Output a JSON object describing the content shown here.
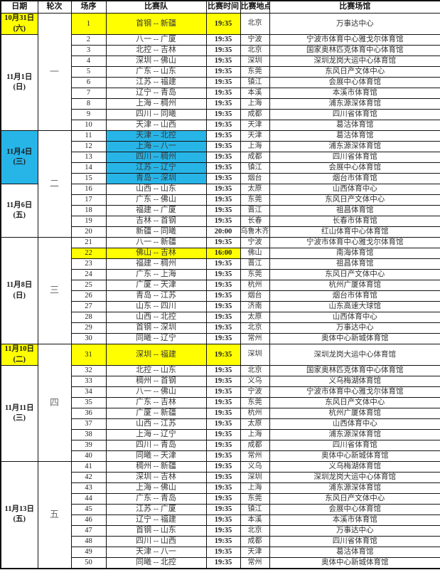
{
  "header": {
    "columns": [
      "日期",
      "轮次",
      "场序",
      "比赛队",
      "比赛时间",
      "比赛地点",
      "比赛场馆"
    ]
  },
  "colors": {
    "highlight_yellow": "#ffff00",
    "highlight_blue": "#27b5e8",
    "border": "#111111"
  },
  "date_groups": [
    {
      "date": "10月31日",
      "week": "(六)",
      "start": 1,
      "end": 1,
      "bg": "yellow"
    },
    {
      "date": "11月1日",
      "week": "(日)",
      "start": 2,
      "end": 10,
      "bg": null
    },
    {
      "date": "11月4日",
      "week": "(三)",
      "start": 11,
      "end": 15,
      "bg": "blue"
    },
    {
      "date": "11月6日",
      "week": "(五)",
      "start": 16,
      "end": 20,
      "bg": null
    },
    {
      "date": "11月8日",
      "week": "(日)",
      "start": 21,
      "end": 30,
      "bg": null
    },
    {
      "date": "11月10日",
      "week": "(二)",
      "start": 31,
      "end": 31,
      "bg": "yellow"
    },
    {
      "date": "11月11日",
      "week": "(三)",
      "start": 32,
      "end": 40,
      "bg": null
    },
    {
      "date": "11月13日",
      "week": "(五)",
      "start": 41,
      "end": 50,
      "bg": null
    }
  ],
  "round_groups": [
    {
      "label": "一",
      "start": 1,
      "end": 10
    },
    {
      "label": "二",
      "start": 11,
      "end": 20
    },
    {
      "label": "三",
      "start": 21,
      "end": 30
    },
    {
      "label": "四",
      "start": 31,
      "end": 40
    },
    {
      "label": "五",
      "start": 41,
      "end": 50
    }
  ],
  "rows": [
    {
      "no": 1,
      "teams": "首钢 -- 新疆",
      "time": "19:35",
      "city": "北京",
      "venue": "万事达中心",
      "hl": "yellow"
    },
    {
      "no": 2,
      "teams": "八一 -- 广厦",
      "time": "19:35",
      "city": "宁波",
      "venue": "宁波市体育中心雅戈尔体育馆",
      "hl": null
    },
    {
      "no": 3,
      "teams": "北控 -- 吉林",
      "time": "19:35",
      "city": "北京",
      "venue": "国家奥林匹克体育中心体育馆",
      "hl": null
    },
    {
      "no": 4,
      "teams": "深圳 -- 佛山",
      "time": "19:35",
      "city": "深圳",
      "venue": "深圳龙岗大运中心体育馆",
      "hl": null
    },
    {
      "no": 5,
      "teams": "广东 -- 山东",
      "time": "19:35",
      "city": "东莞",
      "venue": "东风日产文体中心",
      "hl": null
    },
    {
      "no": 6,
      "teams": "江苏 -- 福建",
      "time": "19:35",
      "city": "镇江",
      "venue": "会展中心体育馆",
      "hl": null
    },
    {
      "no": 7,
      "teams": "辽宁 -- 青岛",
      "time": "19:35",
      "city": "本溪",
      "venue": "本溪市体育馆",
      "hl": null
    },
    {
      "no": 8,
      "teams": "上海 -- 稠州",
      "time": "19:35",
      "city": "上海",
      "venue": "浦东源深体育馆",
      "hl": null
    },
    {
      "no": 9,
      "teams": "四川 -- 同曦",
      "time": "19:35",
      "city": "成都",
      "venue": "四川省体育馆",
      "hl": null
    },
    {
      "no": 10,
      "teams": "天津 -- 山西",
      "time": "19:35",
      "city": "天津",
      "venue": "葛沽体育馆",
      "hl": null
    },
    {
      "no": 11,
      "teams": "天津 -- 北控",
      "time": "19:35",
      "city": "天津",
      "venue": "葛沽体育馆",
      "hl": "blue"
    },
    {
      "no": 12,
      "teams": "上海 -- 八一",
      "time": "19:35",
      "city": "上海",
      "venue": "浦东源深体育馆",
      "hl": "blue"
    },
    {
      "no": 13,
      "teams": "四川 -- 稠州",
      "time": "19:35",
      "city": "成都",
      "venue": "四川省体育馆",
      "hl": "blue"
    },
    {
      "no": 14,
      "teams": "江苏 -- 辽宁",
      "time": "19:35",
      "city": "镇江",
      "venue": "会展中心体育馆",
      "hl": "blue"
    },
    {
      "no": 15,
      "teams": "青岛 -- 深圳",
      "time": "19:35",
      "city": "烟台",
      "venue": "烟台市体育馆",
      "hl": "blue"
    },
    {
      "no": 16,
      "teams": "山西 -- 山东",
      "time": "19:35",
      "city": "太原",
      "venue": "山西体育中心",
      "hl": null
    },
    {
      "no": 17,
      "teams": "广东 -- 佛山",
      "time": "19:35",
      "city": "东莞",
      "venue": "东风日产文体中心",
      "hl": null
    },
    {
      "no": 18,
      "teams": "福建 -- 广厦",
      "time": "19:35",
      "city": "晋江",
      "venue": "祖昌体育馆",
      "hl": null
    },
    {
      "no": 19,
      "teams": "吉林 -- 首钢",
      "time": "19:35",
      "city": "长春",
      "venue": "长春市体育馆",
      "hl": null
    },
    {
      "no": 20,
      "teams": "新疆 -- 同曦",
      "time": "20:00",
      "city": "乌鲁木齐",
      "venue": "红山体育中心体育馆",
      "hl": null
    },
    {
      "no": 21,
      "teams": "八一 -- 新疆",
      "time": "19:35",
      "city": "宁波",
      "venue": "宁波市体育中心雅戈尔体育馆",
      "hl": null
    },
    {
      "no": 22,
      "teams": "佛山 -- 吉林",
      "time": "16:00",
      "city": "佛山",
      "venue": "南海体育馆",
      "hl": "yellow"
    },
    {
      "no": 23,
      "teams": "福建 -- 稠州",
      "time": "19:35",
      "city": "晋江",
      "venue": "祖昌体育馆",
      "hl": null
    },
    {
      "no": 24,
      "teams": "广东 -- 上海",
      "time": "19:35",
      "city": "东莞",
      "venue": "东风日产文体中心",
      "hl": null
    },
    {
      "no": 25,
      "teams": "广厦 -- 天津",
      "time": "19:35",
      "city": "杭州",
      "venue": "杭州广厦体育馆",
      "hl": null
    },
    {
      "no": 26,
      "teams": "青岛 -- 江苏",
      "time": "19:35",
      "city": "烟台",
      "venue": "烟台市体育馆",
      "hl": null
    },
    {
      "no": 27,
      "teams": "山东 -- 四川",
      "time": "19:35",
      "city": "济南",
      "venue": "山东高速大球馆",
      "hl": null
    },
    {
      "no": 28,
      "teams": "山西 -- 北控",
      "time": "19:35",
      "city": "太原",
      "venue": "山西体育中心",
      "hl": null
    },
    {
      "no": 29,
      "teams": "首钢 -- 深圳",
      "time": "19:35",
      "city": "北京",
      "venue": "万事达中心",
      "hl": null
    },
    {
      "no": 30,
      "teams": "同曦 -- 辽宁",
      "time": "19:35",
      "city": "常州",
      "venue": "奥体中心新城体育馆",
      "hl": null
    },
    {
      "no": 31,
      "teams": "深圳 -- 福建",
      "time": "19:35",
      "city": "深圳",
      "venue": "深圳龙岗大运中心体育馆",
      "hl": "yellow"
    },
    {
      "no": 32,
      "teams": "北控 -- 山东",
      "time": "19:35",
      "city": "北京",
      "venue": "国家奥林匹克体育中心体育馆",
      "hl": null
    },
    {
      "no": 33,
      "teams": "稠州 -- 首钢",
      "time": "19:35",
      "city": "义乌",
      "venue": "义乌梅湖体育馆",
      "hl": null
    },
    {
      "no": 34,
      "teams": "八一 -- 佛山",
      "time": "19:35",
      "city": "宁波",
      "venue": "宁波市体育中心雅戈尔体育馆",
      "hl": null
    },
    {
      "no": 35,
      "teams": "广东 -- 吉林",
      "time": "19:35",
      "city": "东莞",
      "venue": "东风日产文体中心",
      "hl": null
    },
    {
      "no": 36,
      "teams": "广厦 -- 新疆",
      "time": "19:35",
      "city": "杭州",
      "venue": "杭州广厦体育馆",
      "hl": null
    },
    {
      "no": 37,
      "teams": "山西 -- 江苏",
      "time": "19:35",
      "city": "太原",
      "venue": "山西体育中心",
      "hl": null
    },
    {
      "no": 38,
      "teams": "上海 -- 辽宁",
      "time": "19:35",
      "city": "上海",
      "venue": "浦东源深体育馆",
      "hl": null
    },
    {
      "no": 39,
      "teams": "四川 -- 青岛",
      "time": "19:35",
      "city": "成都",
      "venue": "四川省体育馆",
      "hl": null
    },
    {
      "no": 40,
      "teams": "同曦 -- 天津",
      "time": "19:35",
      "city": "常州",
      "venue": "奥体中心新城体育馆",
      "hl": null
    },
    {
      "no": 41,
      "teams": "稠州 -- 新疆",
      "time": "19:35",
      "city": "义乌",
      "venue": "义乌梅湖体育馆",
      "hl": null
    },
    {
      "no": 42,
      "teams": "深圳 -- 吉林",
      "time": "19:35",
      "city": "深圳",
      "venue": "深圳龙岗大运中心体育馆",
      "hl": null
    },
    {
      "no": 43,
      "teams": "上海 -- 佛山",
      "time": "19:35",
      "city": "上海",
      "venue": "浦东源深体育馆",
      "hl": null
    },
    {
      "no": 44,
      "teams": "广东 -- 青岛",
      "time": "19:35",
      "city": "东莞",
      "venue": "东风日产文体中心",
      "hl": null
    },
    {
      "no": 45,
      "teams": "江苏 -- 广厦",
      "time": "19:35",
      "city": "镇江",
      "venue": "会展中心体育馆",
      "hl": null
    },
    {
      "no": 46,
      "teams": "辽宁 -- 福建",
      "time": "19:35",
      "city": "本溪",
      "venue": "本溪市体育馆",
      "hl": null
    },
    {
      "no": 47,
      "teams": "首钢 -- 山东",
      "time": "19:35",
      "city": "北京",
      "venue": "万事达中心",
      "hl": null
    },
    {
      "no": 48,
      "teams": "四川 -- 山西",
      "time": "19:35",
      "city": "成都",
      "venue": "四川省体育馆",
      "hl": null
    },
    {
      "no": 49,
      "teams": "天津 -- 八一",
      "time": "19:35",
      "city": "天津",
      "venue": "葛沽体育馆",
      "hl": null
    },
    {
      "no": 50,
      "teams": "同曦 -- 北控",
      "time": "19:35",
      "city": "常州",
      "venue": "奥体中心新城体育馆",
      "hl": null
    }
  ]
}
